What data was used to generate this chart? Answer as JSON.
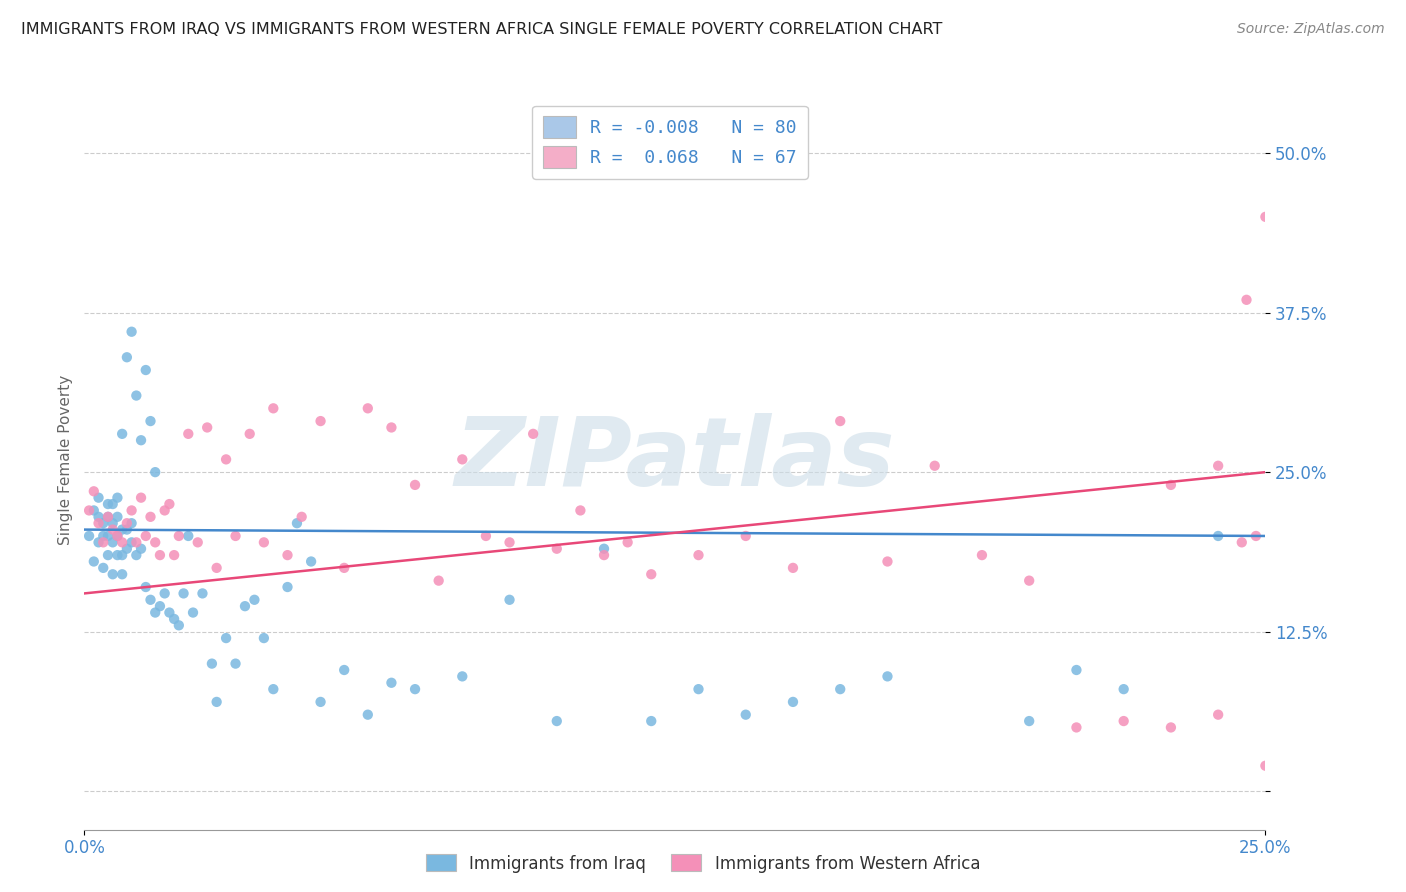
{
  "title": "IMMIGRANTS FROM IRAQ VS IMMIGRANTS FROM WESTERN AFRICA SINGLE FEMALE POVERTY CORRELATION CHART",
  "source": "Source: ZipAtlas.com",
  "ylabel": "Single Female Poverty",
  "yticks": [
    0.0,
    0.125,
    0.25,
    0.375,
    0.5
  ],
  "ytick_labels": [
    "",
    "12.5%",
    "25.0%",
    "37.5%",
    "50.0%"
  ],
  "xtick_labels": [
    "0.0%",
    "25.0%"
  ],
  "xlim": [
    0.0,
    0.25
  ],
  "ylim": [
    -0.03,
    0.55
  ],
  "legend_entries": [
    {
      "label_r": "R = ",
      "label_val": "-0.008",
      "label_n": "  N = ",
      "label_nval": "80",
      "color": "#aac8e8"
    },
    {
      "label_r": "R =  ",
      "label_val": "0.068",
      "label_n": "  N = ",
      "label_nval": "67",
      "color": "#f4aec8"
    }
  ],
  "iraq_color": "#7ab8e0",
  "wa_color": "#f490b8",
  "iraq_line_color": "#4488cc",
  "wa_line_color": "#e84878",
  "watermark": "ZIPatlas",
  "watermark_color": "#ccdde8",
  "tick_color": "#4488cc",
  "iraq_line_y0": 0.205,
  "iraq_line_y1": 0.2,
  "wa_line_y0": 0.155,
  "wa_line_y1": 0.25,
  "bottom_legend": [
    {
      "label": "Immigrants from Iraq",
      "color": "#7ab8e0"
    },
    {
      "label": "Immigrants from Western Africa",
      "color": "#f490b8"
    }
  ],
  "iraq_x": [
    0.001,
    0.002,
    0.002,
    0.003,
    0.003,
    0.003,
    0.004,
    0.004,
    0.004,
    0.005,
    0.005,
    0.005,
    0.005,
    0.006,
    0.006,
    0.006,
    0.006,
    0.007,
    0.007,
    0.007,
    0.007,
    0.008,
    0.008,
    0.008,
    0.008,
    0.009,
    0.009,
    0.009,
    0.01,
    0.01,
    0.01,
    0.011,
    0.011,
    0.012,
    0.012,
    0.013,
    0.013,
    0.014,
    0.014,
    0.015,
    0.015,
    0.016,
    0.017,
    0.018,
    0.019,
    0.02,
    0.021,
    0.022,
    0.023,
    0.025,
    0.027,
    0.028,
    0.03,
    0.032,
    0.034,
    0.036,
    0.038,
    0.04,
    0.043,
    0.045,
    0.048,
    0.05,
    0.055,
    0.06,
    0.065,
    0.07,
    0.08,
    0.09,
    0.1,
    0.11,
    0.12,
    0.13,
    0.14,
    0.15,
    0.16,
    0.17,
    0.2,
    0.21,
    0.22,
    0.24
  ],
  "iraq_y": [
    0.2,
    0.18,
    0.22,
    0.195,
    0.215,
    0.23,
    0.175,
    0.2,
    0.21,
    0.185,
    0.2,
    0.215,
    0.225,
    0.17,
    0.195,
    0.21,
    0.225,
    0.185,
    0.2,
    0.215,
    0.23,
    0.17,
    0.185,
    0.205,
    0.28,
    0.19,
    0.205,
    0.34,
    0.195,
    0.21,
    0.36,
    0.185,
    0.31,
    0.275,
    0.19,
    0.16,
    0.33,
    0.15,
    0.29,
    0.14,
    0.25,
    0.145,
    0.155,
    0.14,
    0.135,
    0.13,
    0.155,
    0.2,
    0.14,
    0.155,
    0.1,
    0.07,
    0.12,
    0.1,
    0.145,
    0.15,
    0.12,
    0.08,
    0.16,
    0.21,
    0.18,
    0.07,
    0.095,
    0.06,
    0.085,
    0.08,
    0.09,
    0.15,
    0.055,
    0.19,
    0.055,
    0.08,
    0.06,
    0.07,
    0.08,
    0.09,
    0.055,
    0.095,
    0.08,
    0.2
  ],
  "wa_x": [
    0.001,
    0.002,
    0.003,
    0.004,
    0.005,
    0.006,
    0.007,
    0.008,
    0.009,
    0.01,
    0.011,
    0.012,
    0.013,
    0.014,
    0.015,
    0.016,
    0.017,
    0.018,
    0.019,
    0.02,
    0.022,
    0.024,
    0.026,
    0.028,
    0.03,
    0.032,
    0.035,
    0.038,
    0.04,
    0.043,
    0.046,
    0.05,
    0.055,
    0.06,
    0.065,
    0.07,
    0.075,
    0.08,
    0.085,
    0.09,
    0.095,
    0.1,
    0.105,
    0.11,
    0.115,
    0.12,
    0.13,
    0.14,
    0.15,
    0.16,
    0.17,
    0.18,
    0.19,
    0.2,
    0.21,
    0.22,
    0.23,
    0.24,
    0.24,
    0.245,
    0.246,
    0.248,
    0.25,
    0.25,
    0.252,
    0.255,
    0.23
  ],
  "wa_y": [
    0.22,
    0.235,
    0.21,
    0.195,
    0.215,
    0.205,
    0.2,
    0.195,
    0.21,
    0.22,
    0.195,
    0.23,
    0.2,
    0.215,
    0.195,
    0.185,
    0.22,
    0.225,
    0.185,
    0.2,
    0.28,
    0.195,
    0.285,
    0.175,
    0.26,
    0.2,
    0.28,
    0.195,
    0.3,
    0.185,
    0.215,
    0.29,
    0.175,
    0.3,
    0.285,
    0.24,
    0.165,
    0.26,
    0.2,
    0.195,
    0.28,
    0.19,
    0.22,
    0.185,
    0.195,
    0.17,
    0.185,
    0.2,
    0.175,
    0.29,
    0.18,
    0.255,
    0.185,
    0.165,
    0.05,
    0.055,
    0.05,
    0.255,
    0.06,
    0.195,
    0.385,
    0.2,
    0.45,
    0.02,
    0.18,
    0.2,
    0.24
  ]
}
